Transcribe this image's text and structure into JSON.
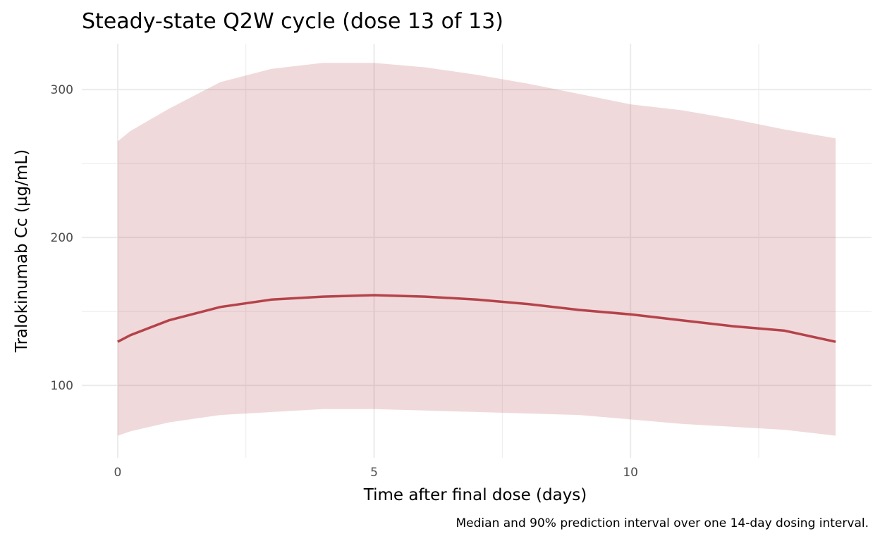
{
  "chart_data": {
    "type": "area",
    "title": "Steady-state Q2W cycle (dose 13 of 13)",
    "xlabel": "Time after final dose (days)",
    "ylabel": "Tralokinumab Cc (µg/mL)",
    "caption": "Median and 90% prediction interval over one 14-day dosing interval.",
    "xlim": [
      -0.7,
      14.7
    ],
    "ylim": [
      51,
      331
    ],
    "xticks": [
      0,
      5,
      10
    ],
    "xtick_labels": [
      "0",
      "5",
      "10"
    ],
    "yticks": [
      100,
      200,
      300
    ],
    "ytick_labels": [
      "100",
      "200",
      "300"
    ],
    "grid": true,
    "x": [
      0,
      0.25,
      1,
      2,
      3,
      4,
      5,
      6,
      7,
      8,
      9,
      10,
      11,
      12,
      13,
      14
    ],
    "series": [
      {
        "name": "Median",
        "values": [
          129.5,
          134,
          144,
          153,
          158,
          160,
          161,
          160,
          158,
          155,
          151,
          148,
          144,
          140,
          137,
          129.5
        ],
        "color": "#b5434a"
      },
      {
        "name": "90% PI lower",
        "values": [
          66,
          69,
          75,
          80,
          82,
          84,
          84,
          83,
          82,
          81,
          80,
          77,
          74,
          72,
          70,
          66
        ],
        "color": "#efd9db"
      },
      {
        "name": "90% PI upper",
        "values": [
          265,
          272,
          287,
          305,
          314,
          318,
          318,
          315,
          310,
          304,
          297,
          290,
          286,
          280,
          273,
          267
        ],
        "color": "#efd9db"
      }
    ]
  }
}
